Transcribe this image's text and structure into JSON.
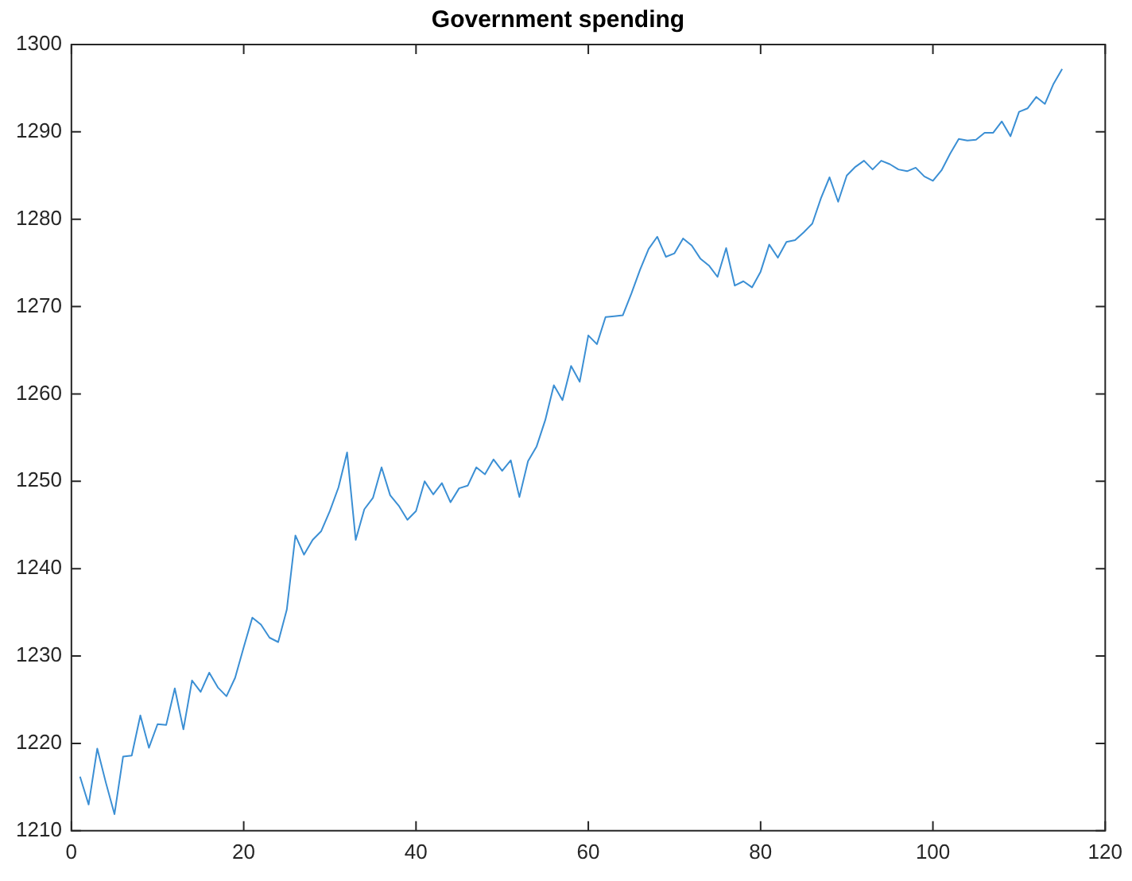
{
  "chart_data": {
    "type": "line",
    "title": "Government spending",
    "x": [
      1,
      2,
      3,
      4,
      5,
      6,
      7,
      8,
      9,
      10,
      11,
      12,
      13,
      14,
      15,
      16,
      17,
      18,
      19,
      20,
      21,
      22,
      23,
      24,
      25,
      26,
      27,
      28,
      29,
      30,
      31,
      32,
      33,
      34,
      35,
      36,
      37,
      38,
      39,
      40,
      41,
      42,
      43,
      44,
      45,
      46,
      47,
      48,
      49,
      50,
      51,
      52,
      53,
      54,
      55,
      56,
      57,
      58,
      59,
      60,
      61,
      62,
      63,
      64,
      65,
      66,
      67,
      68,
      69,
      70,
      71,
      72,
      73,
      74,
      75,
      76,
      77,
      78,
      79,
      80,
      81,
      82,
      83,
      84,
      85,
      86,
      87,
      88,
      89,
      90,
      91,
      92,
      93,
      94,
      95,
      96,
      97,
      98,
      99,
      100,
      101,
      102,
      103,
      104,
      105,
      106,
      107,
      108,
      109,
      110,
      111,
      112,
      113,
      114,
      115
    ],
    "series": [
      {
        "color": "#3b8fd4",
        "values": [
          1216.2,
          1213,
          1219.4,
          1215.5,
          1211.9,
          1218.5,
          1218.6,
          1223.2,
          1219.5,
          1222.2,
          1222.1,
          1226.3,
          1221.6,
          1227.2,
          1225.9,
          1228.1,
          1226.4,
          1225.4,
          1227.5,
          1231,
          1234.4,
          1233.6,
          1232.1,
          1231.6,
          1235.3,
          1243.8,
          1241.6,
          1243.3,
          1244.3,
          1246.6,
          1249.3,
          1253.3,
          1243.3,
          1246.8,
          1248.1,
          1251.6,
          1248.4,
          1247.2,
          1245.6,
          1246.6,
          1250,
          1248.5,
          1249.8,
          1247.6,
          1249.2,
          1249.5,
          1251.6,
          1250.8,
          1252.5,
          1251.2,
          1252.4,
          1248.2,
          1252.3,
          1254,
          1257,
          1261,
          1259.3,
          1263.2,
          1261.4,
          1266.7,
          1265.7,
          1268.8,
          1268.9,
          1269,
          1271.5,
          1274.2,
          1276.6,
          1278,
          1275.7,
          1276.1,
          1277.8,
          1277,
          1275.5,
          1274.7,
          1273.4,
          1276.7,
          1272.4,
          1272.9,
          1272.2,
          1274,
          1277.1,
          1275.6,
          1277.4,
          1277.6,
          1278.5,
          1279.5,
          1282.4,
          1284.8,
          1282,
          1285,
          1286,
          1286.7,
          1285.7,
          1286.7,
          1286.3,
          1285.7,
          1285.5,
          1285.9,
          1284.9,
          1284.4,
          1285.6,
          1287.5,
          1289.2,
          1289,
          1289.1,
          1289.9,
          1289.9,
          1291.2,
          1289.5,
          1292.3,
          1292.7,
          1294,
          1293.2,
          1295.5,
          1297.2
        ]
      }
    ],
    "xlim": [
      0,
      120
    ],
    "xticks": [
      0,
      20,
      40,
      60,
      80,
      100,
      120
    ],
    "ylim": [
      1210,
      1300
    ],
    "yticks": [
      1210,
      1220,
      1230,
      1240,
      1250,
      1260,
      1270,
      1280,
      1290,
      1300
    ],
    "grid": false,
    "legend": false,
    "marker": "none",
    "line_style": "solid"
  }
}
